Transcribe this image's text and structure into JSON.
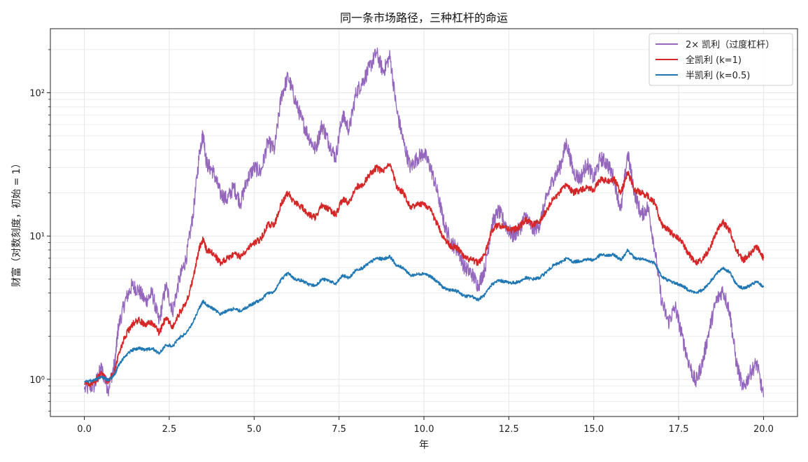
{
  "chart_data": {
    "type": "line",
    "title": "同一条市场路径，三种杠杆的命运",
    "xlabel": "年",
    "ylabel": "财富（对数刻度，初始 = 1）",
    "xlim": [
      -1.0,
      21.0
    ],
    "ylim": [
      0.55,
      280
    ],
    "yscale": "log",
    "grid": true,
    "legend_position": "top-right",
    "x_ticks": [
      0.0,
      2.5,
      5.0,
      7.5,
      10.0,
      12.5,
      15.0,
      17.5,
      20.0
    ],
    "x_tick_labels": [
      "0.0",
      "2.5",
      "5.0",
      "7.5",
      "10.0",
      "12.5",
      "15.0",
      "17.5",
      "20.0"
    ],
    "y_ticks": [
      1,
      10,
      100
    ],
    "y_tick_labels": [
      "10⁰",
      "10¹",
      "10²"
    ],
    "series": [
      {
        "name": "2× 凯利（过度杠杆）",
        "color": "#9467bd",
        "x": [
          0.0,
          0.3,
          0.5,
          0.7,
          0.9,
          1.0,
          1.2,
          1.4,
          1.6,
          1.8,
          2.0,
          2.2,
          2.4,
          2.6,
          2.8,
          3.0,
          3.2,
          3.4,
          3.5,
          3.6,
          3.8,
          4.0,
          4.2,
          4.4,
          4.6,
          4.8,
          5.0,
          5.2,
          5.4,
          5.6,
          5.8,
          6.0,
          6.2,
          6.4,
          6.6,
          6.8,
          7.0,
          7.2,
          7.4,
          7.6,
          7.8,
          8.0,
          8.2,
          8.4,
          8.6,
          8.8,
          9.0,
          9.2,
          9.4,
          9.6,
          9.8,
          10.0,
          10.2,
          10.4,
          10.6,
          10.8,
          11.0,
          11.2,
          11.4,
          11.6,
          11.8,
          12.0,
          12.2,
          12.4,
          12.6,
          12.8,
          13.0,
          13.2,
          13.4,
          13.6,
          13.8,
          14.0,
          14.2,
          14.4,
          14.6,
          14.8,
          15.0,
          15.2,
          15.4,
          15.6,
          15.8,
          16.0,
          16.2,
          16.4,
          16.6,
          16.8,
          17.0,
          17.2,
          17.4,
          17.6,
          17.8,
          18.0,
          18.2,
          18.4,
          18.6,
          18.8,
          19.0,
          19.2,
          19.4,
          19.6,
          19.8,
          20.0
        ],
        "values": [
          0.85,
          0.9,
          1.2,
          0.85,
          1.3,
          2.3,
          3.5,
          4.5,
          4.2,
          3.5,
          4.0,
          2.5,
          4.5,
          3.0,
          5.0,
          7.0,
          14.0,
          40.0,
          52.0,
          32.0,
          28.0,
          20.0,
          18.0,
          22.0,
          17.0,
          25.0,
          30.0,
          28.0,
          45.0,
          40.0,
          95.0,
          130.0,
          90.0,
          65.0,
          50.0,
          40.0,
          60.0,
          45.0,
          35.0,
          70.0,
          55.0,
          100.0,
          120.0,
          150.0,
          190.0,
          140.0,
          180.0,
          75.0,
          45.0,
          30.0,
          35.0,
          38.0,
          30.0,
          20.0,
          12.0,
          9.0,
          8.0,
          6.0,
          5.5,
          4.5,
          6.0,
          12.0,
          15.0,
          12.0,
          10.0,
          11.0,
          14.0,
          11.0,
          12.0,
          18.0,
          25.0,
          30.0,
          45.0,
          28.0,
          25.0,
          32.0,
          25.0,
          35.0,
          32.0,
          25.0,
          15.0,
          38.0,
          20.0,
          14.0,
          16.0,
          8.0,
          3.5,
          2.5,
          3.2,
          2.0,
          1.3,
          0.95,
          1.3,
          2.2,
          3.5,
          4.2,
          3.0,
          1.3,
          0.85,
          1.1,
          1.3,
          0.75
        ]
      },
      {
        "name": "全凯利 (k=1)",
        "color": "#d62728",
        "x": [
          0.0,
          0.3,
          0.5,
          0.7,
          0.9,
          1.0,
          1.2,
          1.4,
          1.6,
          1.8,
          2.0,
          2.2,
          2.4,
          2.6,
          2.8,
          3.0,
          3.2,
          3.4,
          3.5,
          3.6,
          3.8,
          4.0,
          4.2,
          4.4,
          4.6,
          4.8,
          5.0,
          5.2,
          5.4,
          5.6,
          5.8,
          6.0,
          6.2,
          6.4,
          6.6,
          6.8,
          7.0,
          7.2,
          7.4,
          7.6,
          7.8,
          8.0,
          8.2,
          8.4,
          8.6,
          8.8,
          9.0,
          9.2,
          9.4,
          9.6,
          9.8,
          10.0,
          10.2,
          10.4,
          10.6,
          10.8,
          11.0,
          11.2,
          11.4,
          11.6,
          11.8,
          12.0,
          12.2,
          12.4,
          12.6,
          12.8,
          13.0,
          13.2,
          13.4,
          13.6,
          13.8,
          14.0,
          14.2,
          14.4,
          14.6,
          14.8,
          15.0,
          15.2,
          15.4,
          15.6,
          15.8,
          16.0,
          16.2,
          16.4,
          16.6,
          16.8,
          17.0,
          17.2,
          17.4,
          17.6,
          17.8,
          18.0,
          18.2,
          18.4,
          18.6,
          18.8,
          19.0,
          19.2,
          19.4,
          19.6,
          19.8,
          20.0
        ],
        "values": [
          0.92,
          0.95,
          1.1,
          0.95,
          1.15,
          1.5,
          2.0,
          2.4,
          2.6,
          2.4,
          2.5,
          2.1,
          2.7,
          2.3,
          2.9,
          3.4,
          5.0,
          8.5,
          9.5,
          8.0,
          7.5,
          6.5,
          7.0,
          7.5,
          7.2,
          8.2,
          9.0,
          9.5,
          12.0,
          12.0,
          17.0,
          20.0,
          17.0,
          16.0,
          14.0,
          13.5,
          16.5,
          15.5,
          14.0,
          18.0,
          17.0,
          22.0,
          23.0,
          27.0,
          30.0,
          28.0,
          32.0,
          22.0,
          20.0,
          16.0,
          16.5,
          17.0,
          15.0,
          12.0,
          9.5,
          8.5,
          8.2,
          7.0,
          6.8,
          6.5,
          7.5,
          11.0,
          12.0,
          11.5,
          11.0,
          11.5,
          13.0,
          12.0,
          12.5,
          15.0,
          18.0,
          20.0,
          23.0,
          20.0,
          21.0,
          22.0,
          21.0,
          25.0,
          24.0,
          25.0,
          20.0,
          28.0,
          21.0,
          20.0,
          19.0,
          17.0,
          12.0,
          11.0,
          10.0,
          9.0,
          7.5,
          6.5,
          6.8,
          8.0,
          10.5,
          12.5,
          11.0,
          8.0,
          6.8,
          7.5,
          8.5,
          7.0
        ]
      },
      {
        "name": "半凯利 (k=0.5)",
        "color": "#1f77b4",
        "x": [
          0.0,
          0.3,
          0.5,
          0.7,
          0.9,
          1.0,
          1.2,
          1.4,
          1.6,
          1.8,
          2.0,
          2.2,
          2.4,
          2.6,
          2.8,
          3.0,
          3.2,
          3.4,
          3.5,
          3.6,
          3.8,
          4.0,
          4.2,
          4.4,
          4.6,
          4.8,
          5.0,
          5.2,
          5.4,
          5.6,
          5.8,
          6.0,
          6.2,
          6.4,
          6.6,
          6.8,
          7.0,
          7.2,
          7.4,
          7.6,
          7.8,
          8.0,
          8.2,
          8.4,
          8.6,
          8.8,
          9.0,
          9.2,
          9.4,
          9.6,
          9.8,
          10.0,
          10.2,
          10.4,
          10.6,
          10.8,
          11.0,
          11.2,
          11.4,
          11.6,
          11.8,
          12.0,
          12.2,
          12.4,
          12.6,
          12.8,
          13.0,
          13.2,
          13.4,
          13.6,
          13.8,
          14.0,
          14.2,
          14.4,
          14.6,
          14.8,
          15.0,
          15.2,
          15.4,
          15.6,
          15.8,
          16.0,
          16.2,
          16.4,
          16.6,
          16.8,
          17.0,
          17.2,
          17.4,
          17.6,
          17.8,
          18.0,
          18.2,
          18.4,
          18.6,
          18.8,
          19.0,
          19.2,
          19.4,
          19.6,
          19.8,
          20.0
        ],
        "values": [
          0.97,
          0.98,
          1.05,
          0.98,
          1.08,
          1.25,
          1.45,
          1.6,
          1.65,
          1.6,
          1.65,
          1.5,
          1.75,
          1.7,
          1.95,
          2.1,
          2.5,
          3.2,
          3.5,
          3.3,
          3.1,
          2.85,
          3.0,
          3.1,
          3.0,
          3.2,
          3.4,
          3.6,
          4.0,
          4.1,
          5.0,
          5.5,
          5.0,
          4.9,
          4.6,
          4.5,
          5.0,
          4.9,
          4.6,
          5.3,
          5.1,
          5.8,
          6.0,
          6.5,
          7.0,
          6.9,
          7.2,
          6.2,
          6.0,
          5.3,
          5.4,
          5.5,
          5.2,
          4.8,
          4.3,
          4.2,
          4.1,
          3.8,
          3.8,
          3.6,
          3.9,
          4.6,
          4.9,
          4.8,
          4.7,
          4.8,
          5.1,
          5.0,
          5.1,
          5.6,
          6.2,
          6.5,
          7.0,
          6.6,
          6.7,
          6.9,
          6.8,
          7.4,
          7.3,
          7.4,
          6.8,
          8.0,
          7.0,
          6.9,
          6.7,
          6.5,
          5.2,
          4.9,
          4.7,
          4.5,
          4.2,
          4.0,
          4.2,
          4.7,
          5.4,
          6.0,
          5.6,
          4.6,
          4.3,
          4.5,
          4.8,
          4.4
        ]
      }
    ]
  }
}
